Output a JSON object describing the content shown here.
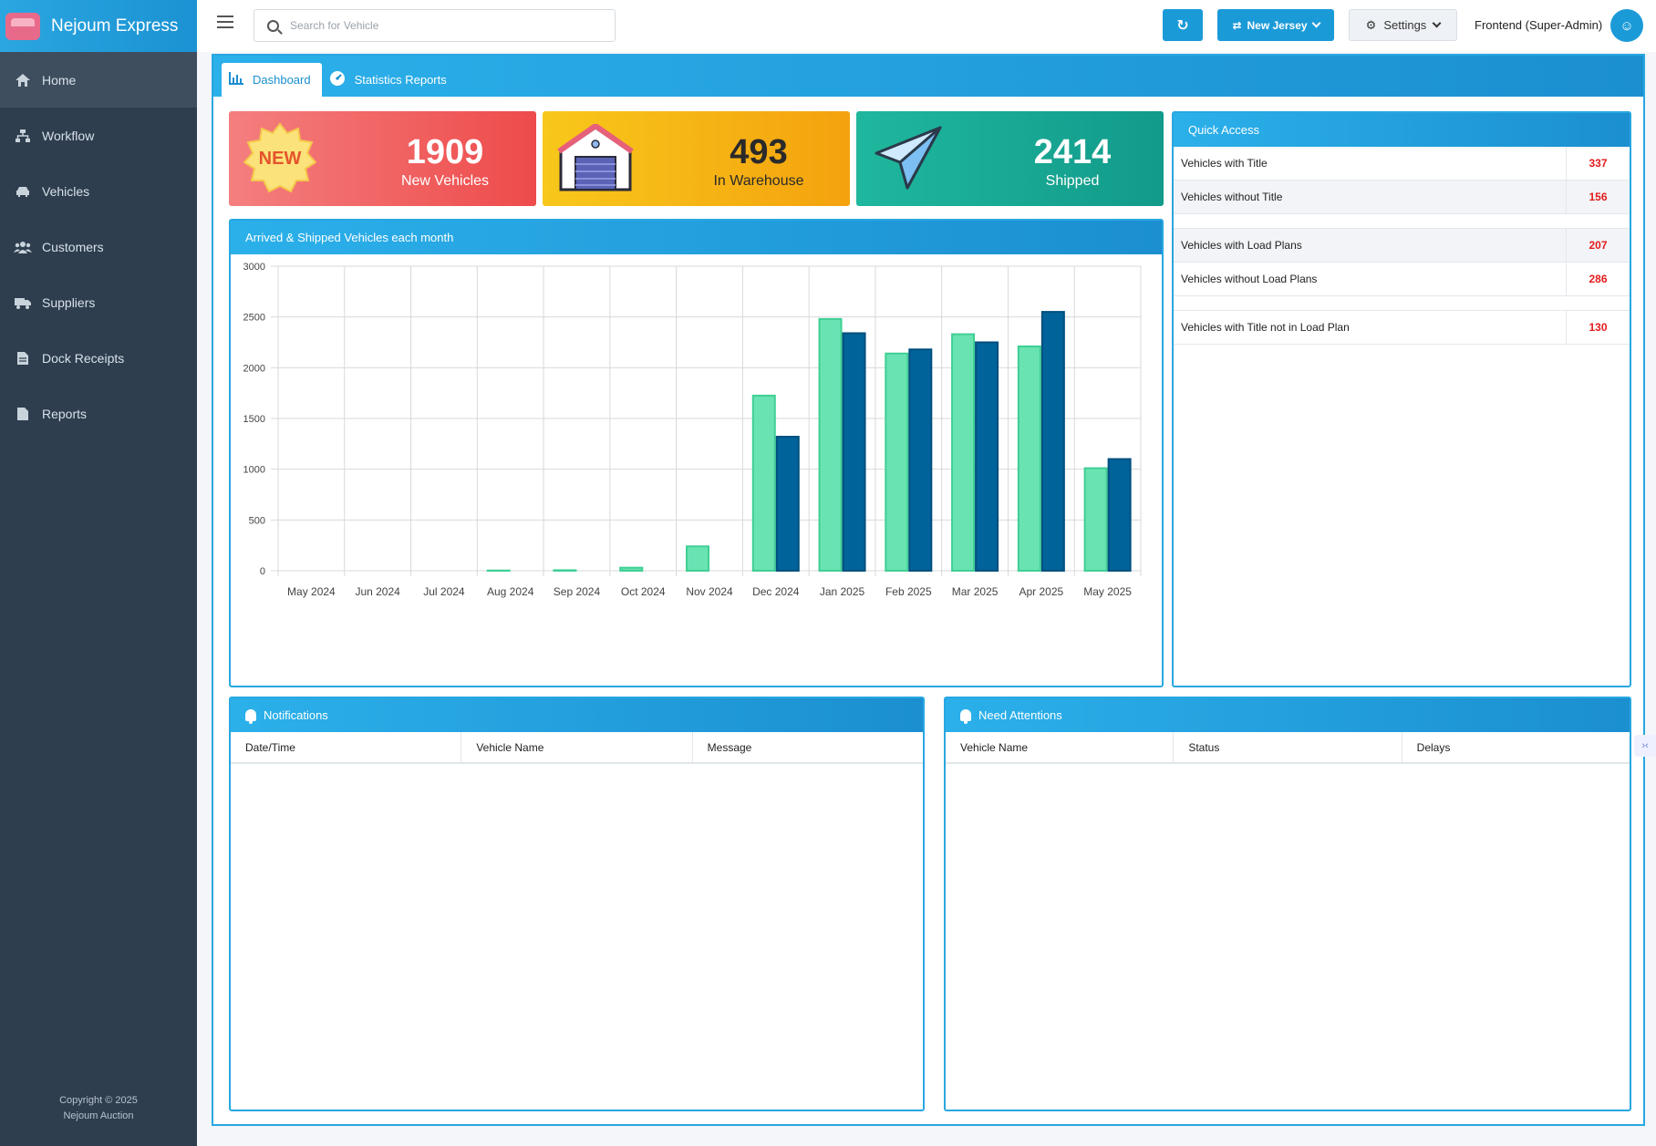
{
  "sidebar": {
    "brand": "Nejoum Express",
    "items": [
      {
        "label": "Home",
        "icon": "home-icon"
      },
      {
        "label": "Workflow",
        "icon": "sitemap-icon"
      },
      {
        "label": "Vehicles",
        "icon": "car-icon"
      },
      {
        "label": "Customers",
        "icon": "users-icon"
      },
      {
        "label": "Suppliers",
        "icon": "truck-icon"
      },
      {
        "label": "Dock Receipts",
        "icon": "file-icon"
      },
      {
        "label": "Reports",
        "icon": "document-icon"
      }
    ],
    "copyright_line1": "Copyright © 2025",
    "copyright_line2": "Nejoum Auction"
  },
  "topbar": {
    "search_placeholder": "Search for Vehicle",
    "branch_label": "New Jersey",
    "settings_label": "Settings",
    "user_label": "Frontend (Super-Admin)"
  },
  "tabs": [
    {
      "label": "Dashboard",
      "active": true
    },
    {
      "label": "Statistics Reports",
      "active": false
    }
  ],
  "stats": {
    "new": {
      "value": "1909",
      "label": "New Vehicles",
      "badge": "NEW"
    },
    "warehouse": {
      "value": "493",
      "label": "In Warehouse"
    },
    "shipped": {
      "value": "2414",
      "label": "Shipped"
    }
  },
  "quick_access": {
    "title": "Quick Access",
    "rows": [
      {
        "label": "Vehicles with Title",
        "value": "337"
      },
      {
        "label": "Vehicles without Title",
        "value": "156"
      },
      {
        "label": "Vehicles with Load Plans",
        "value": "207"
      },
      {
        "label": "Vehicles without Load Plans",
        "value": "286"
      },
      {
        "label": "Vehicles with Title not in Load Plan",
        "value": "130"
      }
    ]
  },
  "notifications": {
    "title": "Notifications",
    "columns": [
      "Date/Time",
      "Vehicle Name",
      "Message"
    ]
  },
  "need_attentions": {
    "title": "Need Attentions",
    "columns": [
      "Vehicle Name",
      "Status",
      "Delays"
    ]
  },
  "colors": {
    "accent": "#1b9ad8",
    "sidebar": "#2e3e4e",
    "series_arrived": "#6ae3b3",
    "series_shipped": "#00639a"
  },
  "chart_data": {
    "type": "bar",
    "title": "Arrived & Shipped Vehicles each month",
    "categories": [
      "May 2024",
      "Jun 2024",
      "Jul 2024",
      "Aug 2024",
      "Sep 2024",
      "Oct 2024",
      "Nov 2024",
      "Dec 2024",
      "Jan 2025",
      "Feb 2025",
      "Mar 2025",
      "Apr 2025",
      "May 2025"
    ],
    "series": [
      {
        "values": [
          0,
          0,
          0,
          2,
          5,
          30,
          240,
          1725,
          2480,
          2140,
          2330,
          2210,
          1010
        ],
        "color": "#6ae3b3"
      },
      {
        "values": [
          0,
          0,
          0,
          0,
          0,
          0,
          0,
          1320,
          2340,
          2180,
          2250,
          2550,
          1100
        ],
        "color": "#00639a"
      }
    ],
    "yticks": [
      0,
      500,
      1000,
      1500,
      2000,
      2500,
      3000
    ],
    "ylim": [
      0,
      3000
    ],
    "grid": true,
    "legend": "none"
  }
}
